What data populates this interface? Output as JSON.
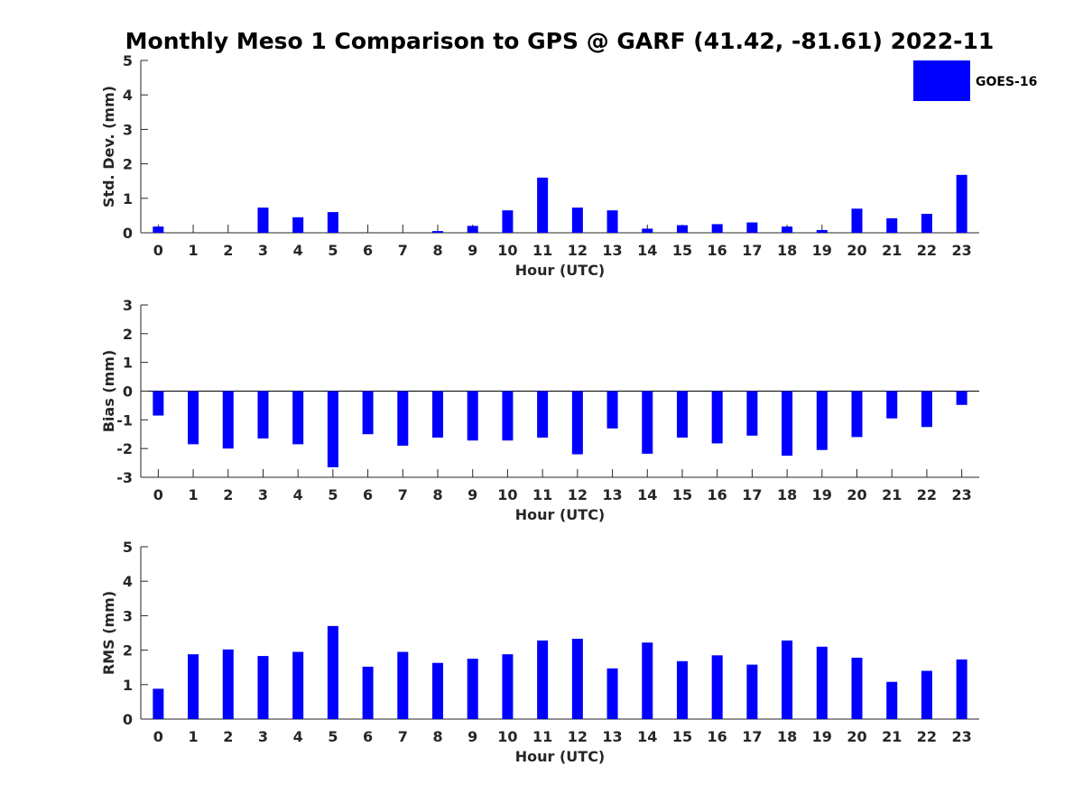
{
  "figure": {
    "title": "Monthly Meso 1 Comparison to GPS @ GARF (41.42, -81.61) 2022-11"
  },
  "legend": {
    "label": "GOES-16",
    "color": "#0000ff",
    "placement": "top-right"
  },
  "chart_data": [
    {
      "type": "bar",
      "xlabel": "Hour (UTC)",
      "ylabel": "Std. Dev. (mm)",
      "ylim": [
        0,
        5
      ],
      "yticks": [
        0,
        1,
        2,
        3,
        4,
        5
      ],
      "categories": [
        "0",
        "1",
        "2",
        "3",
        "4",
        "5",
        "6",
        "7",
        "8",
        "9",
        "10",
        "11",
        "12",
        "13",
        "14",
        "15",
        "16",
        "17",
        "18",
        "19",
        "20",
        "21",
        "22",
        "23"
      ],
      "series": [
        {
          "name": "GOES-16",
          "color": "#0000ff",
          "values": [
            0.18,
            0,
            0,
            0.73,
            0.45,
            0.6,
            0,
            0,
            0.05,
            0.2,
            0.65,
            1.6,
            0.73,
            0.65,
            0.12,
            0.22,
            0.25,
            0.3,
            0.18,
            0.08,
            0.7,
            0.42,
            0.55,
            1.68
          ]
        }
      ]
    },
    {
      "type": "bar",
      "xlabel": "Hour (UTC)",
      "ylabel": "Bias (mm)",
      "ylim": [
        -3,
        3
      ],
      "yticks": [
        -3,
        -2,
        -1,
        0,
        1,
        2,
        3
      ],
      "categories": [
        "0",
        "1",
        "2",
        "3",
        "4",
        "5",
        "6",
        "7",
        "8",
        "9",
        "10",
        "11",
        "12",
        "13",
        "14",
        "15",
        "16",
        "17",
        "18",
        "19",
        "20",
        "21",
        "22",
        "23"
      ],
      "series": [
        {
          "name": "GOES-16",
          "color": "#0000ff",
          "values": [
            -0.85,
            -1.85,
            -2.0,
            -1.65,
            -1.85,
            -2.65,
            -1.5,
            -1.9,
            -1.62,
            -1.72,
            -1.72,
            -1.62,
            -2.2,
            -1.3,
            -2.18,
            -1.62,
            -1.82,
            -1.55,
            -2.25,
            -2.05,
            -1.6,
            -0.95,
            -1.25,
            -0.48
          ]
        }
      ]
    },
    {
      "type": "bar",
      "xlabel": "Hour (UTC)",
      "ylabel": "RMS (mm)",
      "ylim": [
        0,
        5
      ],
      "yticks": [
        0,
        1,
        2,
        3,
        4,
        5
      ],
      "categories": [
        "0",
        "1",
        "2",
        "3",
        "4",
        "5",
        "6",
        "7",
        "8",
        "9",
        "10",
        "11",
        "12",
        "13",
        "14",
        "15",
        "16",
        "17",
        "18",
        "19",
        "20",
        "21",
        "22",
        "23"
      ],
      "series": [
        {
          "name": "GOES-16",
          "color": "#0000ff",
          "values": [
            0.88,
            1.88,
            2.02,
            1.83,
            1.95,
            2.7,
            1.52,
            1.95,
            1.63,
            1.75,
            1.88,
            2.28,
            2.33,
            1.47,
            2.22,
            1.68,
            1.85,
            1.58,
            2.28,
            2.1,
            1.78,
            1.08,
            1.4,
            1.73
          ]
        }
      ]
    }
  ]
}
